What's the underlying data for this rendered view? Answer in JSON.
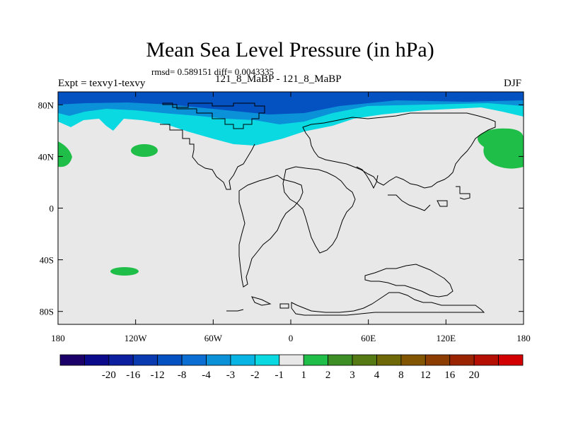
{
  "chart_data": {
    "type": "heatmap",
    "title": "Mean Sea Level Pressure (in hPa)",
    "stats_line": "rmsd= 0.589151 diff= 0.0043335",
    "left_label": "Expt = texvy1-texvy",
    "center_label": "121_8_MaBP - 121_8_MaBP",
    "right_label": "DJF",
    "xlim": [
      -180,
      180
    ],
    "ylim": [
      -90,
      90
    ],
    "x_ticks": [
      {
        "value": -180,
        "label": "180"
      },
      {
        "value": -120,
        "label": "120W"
      },
      {
        "value": -60,
        "label": "60W"
      },
      {
        "value": 0,
        "label": "0"
      },
      {
        "value": 60,
        "label": "60E"
      },
      {
        "value": 120,
        "label": "120E"
      },
      {
        "value": 180,
        "label": "180"
      }
    ],
    "y_ticks": [
      {
        "value": 80,
        "label": "80N"
      },
      {
        "value": 40,
        "label": "40N"
      },
      {
        "value": 0,
        "label": "0"
      },
      {
        "value": -40,
        "label": "40S"
      },
      {
        "value": -80,
        "label": "80S"
      }
    ],
    "background_value_range": "-1 to 1",
    "features": [
      {
        "name": "arctic-band-deep",
        "class": "-12 to -8",
        "approx_lat_range": [
          76,
          90
        ]
      },
      {
        "name": "arctic-band-mid",
        "class": "-4 to -3",
        "approx_lat_range": [
          70,
          82
        ]
      },
      {
        "name": "arctic-band-light",
        "class": "-2 to -1",
        "approx_lat_range": [
          50,
          76
        ]
      },
      {
        "name": "n-pacific-east-high",
        "class": "1 to 2",
        "approx_lon": 160,
        "approx_lat": 48
      },
      {
        "name": "n-pacific-west-high",
        "class": "1 to 2",
        "approx_lon": -175,
        "approx_lat": 42
      },
      {
        "name": "n-pacific-small-high",
        "class": "1 to 2",
        "approx_lon": -115,
        "approx_lat": 44
      },
      {
        "name": "s-pacific-small-high",
        "class": "1 to 2",
        "approx_lon": -128,
        "approx_lat": -49
      }
    ],
    "colorbar": {
      "colors": [
        "#1c006a",
        "#0a0a8a",
        "#0c1f9e",
        "#0a3ab0",
        "#0451c2",
        "#0a6ed2",
        "#0b91d8",
        "#08b4e4",
        "#0ad9e2",
        "#e8e8e8",
        "#1fbe48",
        "#3d8f25",
        "#557a14",
        "#6e6808",
        "#815502",
        "#8c3d02",
        "#9a2402",
        "#b40f02",
        "#d20000"
      ],
      "labels": [
        "-20",
        "-16",
        "-12",
        "-8",
        "-4",
        "-3",
        "-2",
        "-1",
        "1",
        "2",
        "3",
        "4",
        "8",
        "12",
        "16",
        "20"
      ]
    }
  }
}
